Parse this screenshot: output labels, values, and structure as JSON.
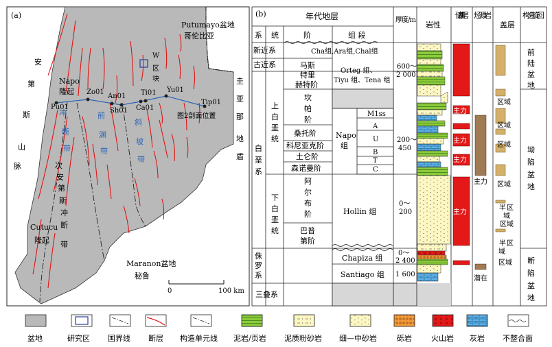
{
  "map": {
    "panel_label": "(a)",
    "basins": {
      "north": "Putumayo盆地",
      "north2": "哥伦比亚",
      "south": "Maranon盆地",
      "south2": "秘鲁"
    },
    "left_zone": [
      "安",
      "第",
      "斯",
      "山",
      "脉"
    ],
    "right_zone": [
      "圭",
      "亚",
      "那",
      "地",
      "盾"
    ],
    "napo": [
      "Napo",
      "隆起"
    ],
    "cutucu": [
      "Cutucu",
      "隆起"
    ],
    "sub_andean": [
      "次",
      "安",
      "第",
      "斯",
      "冲",
      "断",
      "带"
    ],
    "blue_zones": {
      "thrust": [
        "冲",
        "断",
        "带"
      ],
      "foredeep": [
        "前",
        "渊",
        "带"
      ],
      "slope": [
        "斜",
        "坡",
        "带"
      ]
    },
    "wblock": [
      "W",
      "区",
      "块"
    ],
    "wells": [
      "Pu01",
      "Zo01",
      "An01",
      "Sh01",
      "Ti01",
      "Ca01",
      "Yu01",
      "Tip01"
    ],
    "section_label": "图2剖面位置",
    "scale": {
      "zero": "0",
      "hundred": "100 km"
    }
  },
  "column": {
    "panel_label": "(b)",
    "headers": {
      "age": "年代地层",
      "system": "系",
      "series": "统",
      "stage": "阶",
      "group": "组 段",
      "thickness": "厚度/m",
      "lithology": "岩性",
      "reservoir": "储集层",
      "source": "烃源岩",
      "seal": "盖层",
      "tectonic": "构造旋回"
    },
    "systems": {
      "neogene": "新近系",
      "paleogene": "古近系",
      "cretaceous": [
        "白",
        "垩",
        "系"
      ],
      "jurassic": [
        "侏",
        "罗",
        "系"
      ],
      "triassic": "三叠系"
    },
    "series": {
      "upper": [
        "上",
        "白",
        "垩",
        "统"
      ],
      "lower": [
        "下",
        "白",
        "垩",
        "统"
      ]
    },
    "stages": {
      "maastrichtian": [
        "马斯",
        "特里",
        "赫特阶"
      ],
      "campanian": [
        "坎",
        "帕",
        "阶"
      ],
      "santonian": "桑托阶",
      "coniacian": "科尼亚克阶",
      "turonian": "土仑阶",
      "cenomanian": "森诺曼阶",
      "albian": [
        "阿",
        "尔",
        "布",
        "阶"
      ],
      "aptian": [
        "巴普",
        "第阶"
      ]
    },
    "groups": {
      "cha": "Cha组,Ara组,Chal组",
      "orteg": [
        "Orteg 组、",
        "Tiyu 组、Tena 组"
      ],
      "m1ss": "M1ss",
      "napo": [
        "Napo",
        "组"
      ],
      "napo_members": [
        "A",
        "U",
        "B",
        "T",
        "C"
      ],
      "hollin": "Hollin 组",
      "chapiza": "Chapiza 组",
      "santiago": "Santiago 组"
    },
    "thickness": {
      "t1": "600～",
      "t1b": "2 000",
      "t2": "200～",
      "t2b": "450",
      "t3": "0～",
      "t3b": "200",
      "t4": "0～",
      "t4b": "2 400",
      "t5": "1 600"
    },
    "reservoir_labels": [
      "主力",
      "主力",
      "主力",
      "主力"
    ],
    "source_labels": {
      "main": "主力",
      "potential": "潜在"
    },
    "seal_labels": {
      "regional": [
        "区域",
        "区域",
        "区域",
        "区域"
      ],
      "semi1": [
        "半",
        "区",
        "域"
      ],
      "semi_regional": "区域",
      "semi2": [
        "半",
        "区",
        "域"
      ],
      "regional2": "区域"
    },
    "tectonic": {
      "foreland": [
        "前",
        "陆",
        "盆",
        "地"
      ],
      "depression": [
        "坳",
        "陷",
        "盆",
        "地"
      ],
      "faulted": [
        "断",
        "陷",
        "盆",
        "地"
      ]
    }
  },
  "legend": {
    "items": [
      "盆地",
      "研究区",
      "国界线",
      "断层",
      "构造单元线",
      "泥岩/页岩",
      "泥质粉砂岩",
      "细—中砂岩",
      "砾岩",
      "火山岩",
      "灰岩",
      "不整合面"
    ]
  },
  "colors": {
    "basin": "#b9b9b9",
    "fault": "#e01515",
    "well_line": "#2a64b8",
    "reservoir": "#e31919",
    "source": "#a07a52",
    "seal": "#d4b06a",
    "sandstone": "#fdf7c2",
    "mudstone": "#8ccb3c",
    "limestone": "#5fb2e6",
    "conglomerate": "#f39a3a"
  }
}
